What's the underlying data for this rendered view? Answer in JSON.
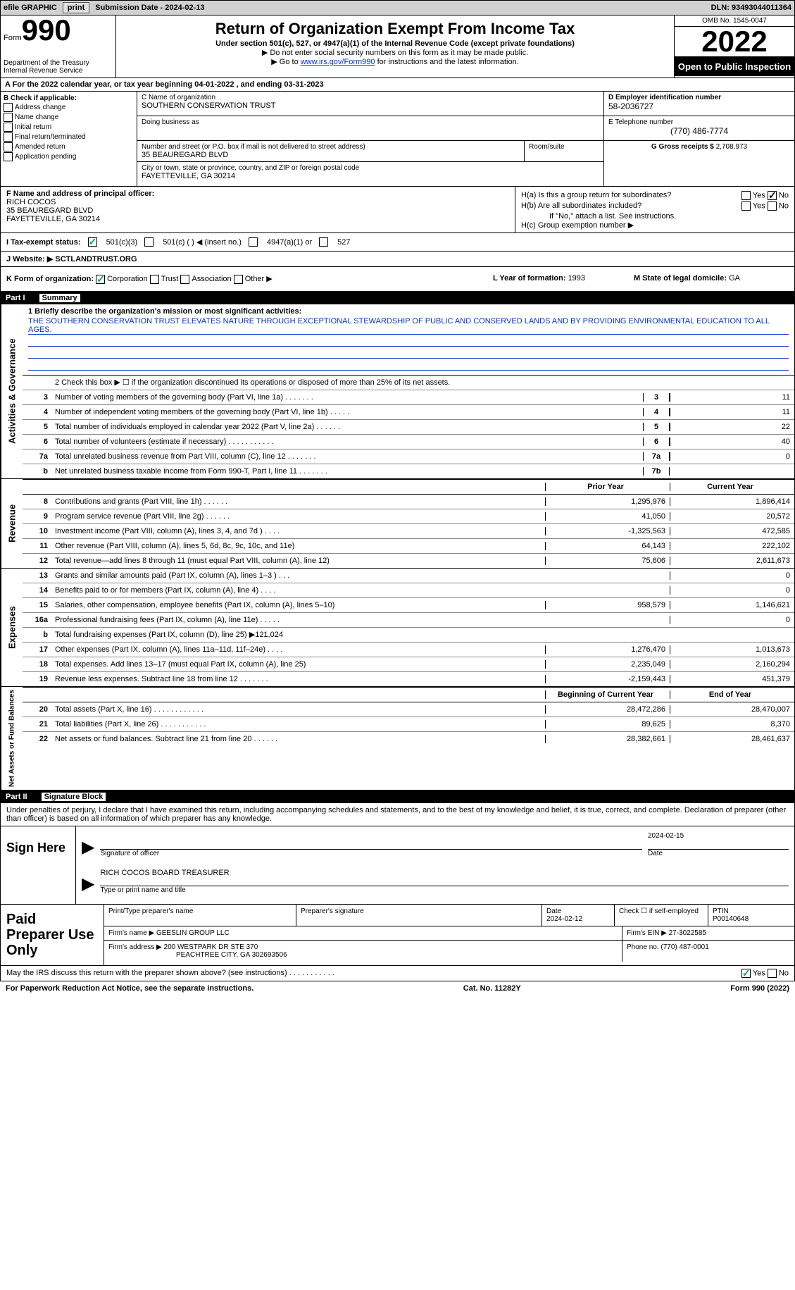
{
  "topbar": {
    "efile": "efile GRAPHIC",
    "print": "print",
    "sub_label": "Submission Date - ",
    "sub_date": "2024-02-13",
    "dln_label": "DLN: ",
    "dln": "93493044011364"
  },
  "header": {
    "form_word": "Form",
    "form_num": "990",
    "dept": "Department of the Treasury",
    "irs": "Internal Revenue Service",
    "title": "Return of Organization Exempt From Income Tax",
    "subtitle": "Under section 501(c), 527, or 4947(a)(1) of the Internal Revenue Code (except private foundations)",
    "instr1": "▶ Do not enter social security numbers on this form as it may be made public.",
    "instr2_pre": "▶ Go to ",
    "instr2_link": "www.irs.gov/Form990",
    "instr2_post": " for instructions and the latest information.",
    "omb": "OMB No. 1545-0047",
    "year": "2022",
    "open": "Open to Public Inspection"
  },
  "period": {
    "text_a": "A For the 2022 calendar year, or tax year beginning ",
    "begin": "04-01-2022",
    "text_b": " , and ending ",
    "end": "03-31-2023"
  },
  "boxB": {
    "label": "B Check if applicable:",
    "items": [
      "Address change",
      "Name change",
      "Initial return",
      "Final return/terminated",
      "Amended return",
      "Application pending"
    ]
  },
  "boxC": {
    "name_label": "C Name of organization",
    "name": "SOUTHERN CONSERVATION TRUST",
    "dba_label": "Doing business as",
    "dba": "",
    "addr_label": "Number and street (or P.O. box if mail is not delivered to street address)",
    "room_label": "Room/suite",
    "addr": "35 BEAUREGARD BLVD",
    "city_label": "City or town, state or province, country, and ZIP or foreign postal code",
    "city": "FAYETTEVILLE, GA  30214"
  },
  "boxD": {
    "label": "D Employer identification number",
    "ein": "58-2036727",
    "tel_label": "E Telephone number",
    "tel": "(770) 486-7774",
    "gross_label": "G Gross receipts $ ",
    "gross": "2,708,973"
  },
  "boxF": {
    "label": "F Name and address of principal officer:",
    "name": "RICH COCOS",
    "addr1": "35 BEAUREGARD BLVD",
    "addr2": "FAYETTEVILLE, GA  30214"
  },
  "boxH": {
    "ha_label": "H(a)  Is this a group return for subordinates?",
    "hb_label": "H(b)  Are all subordinates included?",
    "hb_note": "If \"No,\" attach a list. See instructions.",
    "hc_label": "H(c)  Group exemption number ▶",
    "yes": "Yes",
    "no": "No"
  },
  "boxI": {
    "label": "I  Tax-exempt status:",
    "opt1": "501(c)(3)",
    "opt2": "501(c) (  ) ◀ (insert no.)",
    "opt3": "4947(a)(1) or",
    "opt4": "527"
  },
  "boxJ": {
    "label": "J  Website: ▶",
    "val": "SCTLANDTRUST.ORG"
  },
  "boxK": {
    "label": "K Form of organization:",
    "opts": [
      "Corporation",
      "Trust",
      "Association",
      "Other ▶"
    ]
  },
  "boxL": {
    "label": "L Year of formation: ",
    "val": "1993"
  },
  "boxM": {
    "label": "M State of legal domicile: ",
    "val": "GA"
  },
  "part1": {
    "label": "Part I",
    "title": "Summary",
    "q1_label": "1   Briefly describe the organization's mission or most significant activities:",
    "mission": "THE SOUTHERN CONSERVATION TRUST ELEVATES NATURE THROUGH EXCEPTIONAL STEWARDSHIP OF PUBLIC AND CONSERVED LANDS AND BY PROVIDING ENVIRONMENTAL EDUCATION TO ALL AGES.",
    "q2": "2   Check this box ▶ ☐ if the organization discontinued its operations or disposed of more than 25% of its net assets.",
    "side_ag": "Activities & Governance",
    "side_rev": "Revenue",
    "side_exp": "Expenses",
    "side_net": "Net Assets or Fund Balances",
    "rows_ag": [
      {
        "n": "3",
        "d": "Number of voting members of the governing body (Part VI, line 1a)  .    .    .    .    .    .    .",
        "box": "3",
        "v": "11"
      },
      {
        "n": "4",
        "d": "Number of independent voting members of the governing body (Part VI, line 1b)  .    .    .    .    .",
        "box": "4",
        "v": "11"
      },
      {
        "n": "5",
        "d": "Total number of individuals employed in calendar year 2022 (Part V, line 2a)  .    .    .    .    .    .",
        "box": "5",
        "v": "22"
      },
      {
        "n": "6",
        "d": "Total number of volunteers (estimate if necessary)    .    .    .    .    .    .    .    .    .    .    .",
        "box": "6",
        "v": "40"
      },
      {
        "n": "7a",
        "d": "Total unrelated business revenue from Part VIII, column (C), line 12   .    .    .    .    .    .    .",
        "box": "7a",
        "v": "0"
      },
      {
        "n": "b",
        "d": "Net unrelated business taxable income from Form 990-T, Part I, line 11   .    .    .    .    .    .    .",
        "box": "7b",
        "v": ""
      }
    ],
    "hdr_prior": "Prior Year",
    "hdr_curr": "Current Year",
    "rows_rev": [
      {
        "n": "8",
        "d": "Contributions and grants (Part VIII, line 1h)   .    .    .    .    .    .",
        "p": "1,295,976",
        "c": "1,896,414"
      },
      {
        "n": "9",
        "d": "Program service revenue (Part VIII, line 2g)   .    .    .    .    .    .",
        "p": "41,050",
        "c": "20,572"
      },
      {
        "n": "10",
        "d": "Investment income (Part VIII, column (A), lines 3, 4, and 7d )   .    .    .    .",
        "p": "-1,325,563",
        "c": "472,585"
      },
      {
        "n": "11",
        "d": "Other revenue (Part VIII, column (A), lines 5, 6d, 8c, 9c, 10c, and 11e)",
        "p": "64,143",
        "c": "222,102"
      },
      {
        "n": "12",
        "d": "Total revenue—add lines 8 through 11 (must equal Part VIII, column (A), line 12)",
        "p": "75,606",
        "c": "2,611,673"
      }
    ],
    "rows_exp": [
      {
        "n": "13",
        "d": "Grants and similar amounts paid (Part IX, column (A), lines 1–3 )  .    .    .",
        "p": "",
        "c": "0"
      },
      {
        "n": "14",
        "d": "Benefits paid to or for members (Part IX, column (A), line 4)  .    .    .    .",
        "p": "",
        "c": "0"
      },
      {
        "n": "15",
        "d": "Salaries, other compensation, employee benefits (Part IX, column (A), lines 5–10)",
        "p": "958,579",
        "c": "1,146,621"
      },
      {
        "n": "16a",
        "d": "Professional fundraising fees (Part IX, column (A), line 11e)  .    .    .    .    .",
        "p": "",
        "c": "0"
      },
      {
        "n": "b",
        "d": "Total fundraising expenses (Part IX, column (D), line 25) ▶121,024",
        "p": "shaded",
        "c": "shaded"
      },
      {
        "n": "17",
        "d": "Other expenses (Part IX, column (A), lines 11a–11d, 11f–24e)   .    .    .    .",
        "p": "1,276,470",
        "c": "1,013,673"
      },
      {
        "n": "18",
        "d": "Total expenses. Add lines 13–17 (must equal Part IX, column (A), line 25)",
        "p": "2,235,049",
        "c": "2,160,294"
      },
      {
        "n": "19",
        "d": "Revenue less expenses. Subtract line 18 from line 12  .    .    .    .    .    .    .",
        "p": "-2,159,443",
        "c": "451,379"
      }
    ],
    "hdr_beg": "Beginning of Current Year",
    "hdr_end": "End of Year",
    "rows_net": [
      {
        "n": "20",
        "d": "Total assets (Part X, line 16)  .    .    .    .    .    .    .    .    .    .    .    .",
        "p": "28,472,286",
        "c": "28,470,007"
      },
      {
        "n": "21",
        "d": "Total liabilities (Part X, line 26)   .    .    .    .    .    .    .    .    .    .    .",
        "p": "89,625",
        "c": "8,370"
      },
      {
        "n": "22",
        "d": "Net assets or fund balances. Subtract line 21 from line 20   .    .    .    .    .    .",
        "p": "28,382,661",
        "c": "28,461,637"
      }
    ]
  },
  "part2": {
    "label": "Part II",
    "title": "Signature Block",
    "declare": "Under penalties of perjury, I declare that I have examined this return, including accompanying schedules and statements, and to the best of my knowledge and belief, it is true, correct, and complete. Declaration of preparer (other than officer) is based on all information of which preparer has any knowledge.",
    "sign_here": "Sign Here",
    "sig_officer": "Signature of officer",
    "sig_date": "2024-02-15",
    "date_label": "Date",
    "officer_name": "RICH COCOS BOARD TREASURER",
    "type_name": "Type or print name and title",
    "paid_prep": "Paid Preparer Use Only",
    "print_name_label": "Print/Type preparer's name",
    "prep_sig_label": "Preparer's signature",
    "prep_date_label": "Date",
    "prep_date": "2024-02-12",
    "check_self": "Check ☐ if self-employed",
    "ptin_label": "PTIN",
    "ptin": "P00140648",
    "firm_name_label": "Firm's name    ▶",
    "firm_name": "GEESLIN GROUP LLC",
    "firm_ein_label": "Firm's EIN ▶",
    "firm_ein": "27-3022585",
    "firm_addr_label": "Firm's address ▶",
    "firm_addr1": "200 WESTPARK DR STE 370",
    "firm_addr2": "PEACHTREE CITY, GA  302693506",
    "phone_label": "Phone no. ",
    "phone": "(770) 487-0001",
    "discuss": "May the IRS discuss this return with the preparer shown above? (see instructions)   .    .    .    .    .    .    .    .    .    .    .",
    "discuss_yes": "Yes",
    "discuss_no": "No"
  },
  "footer": {
    "pra": "For Paperwork Reduction Act Notice, see the separate instructions.",
    "cat": "Cat. No. 11282Y",
    "form": "Form 990 (2022)"
  }
}
